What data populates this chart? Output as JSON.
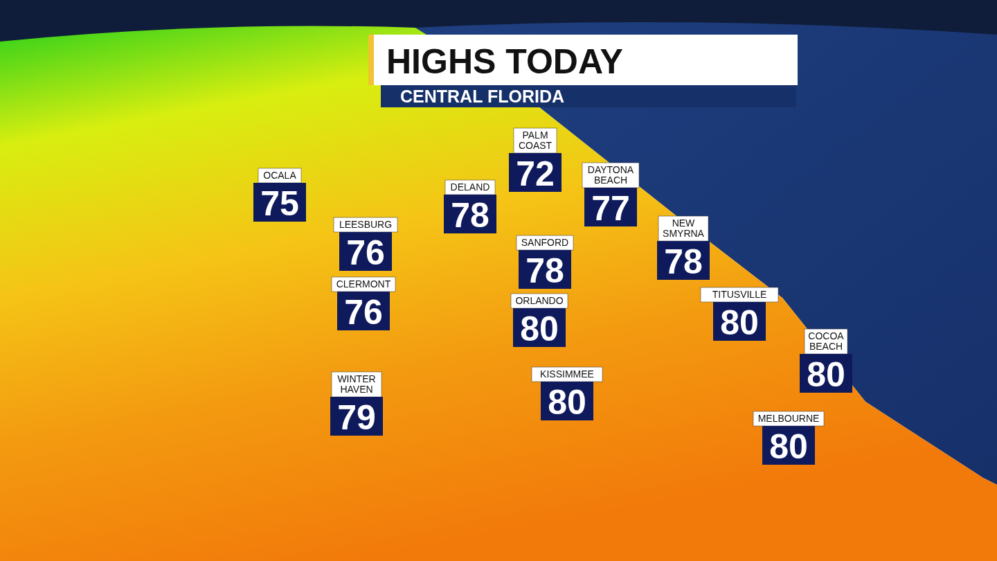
{
  "chart_data": {
    "type": "other",
    "title": "HIGHS TODAY",
    "subtitle": "CENTRAL FLORIDA",
    "categories": [
      "OCALA",
      "PALM COAST",
      "DELAND",
      "DAYTONA BEACH",
      "LEESBURG",
      "SANFORD",
      "NEW SMYRNA",
      "CLERMONT",
      "ORLANDO",
      "TITUSVILLE",
      "COCOA BEACH",
      "WINTER HAVEN",
      "KISSIMMEE",
      "MELBOURNE"
    ],
    "values": [
      75,
      72,
      78,
      77,
      76,
      78,
      78,
      76,
      80,
      80,
      80,
      79,
      80,
      80
    ],
    "color": "#0f1a5c",
    "data_labels": true
  }
}
